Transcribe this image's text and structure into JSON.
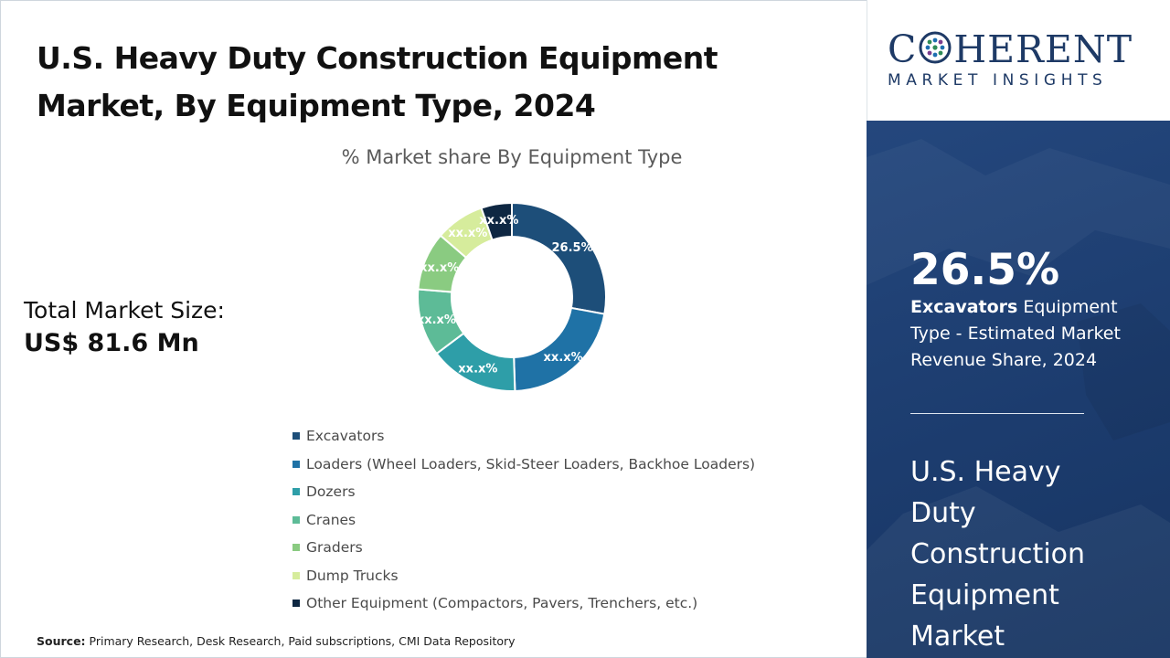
{
  "title": {
    "line1": "U.S. Heavy Duty Construction Equipment",
    "line2": "Market, By Equipment Type, 2024"
  },
  "market_size": {
    "label": "Total Market Size:",
    "value": "US$ 81.6 Mn"
  },
  "source": {
    "label": "Source:",
    "text": " Primary Research, Desk Research, Paid subscriptions, CMI Data Repository"
  },
  "logo": {
    "main_pre": "C",
    "main_post": "HERENT",
    "sub": "MARKET INSIGHTS"
  },
  "sidebar": {
    "stat_value": "26.5%",
    "stat_bold": "Excavators",
    "stat_rest": " Equipment Type - Estimated Market Revenue Share, 2024",
    "title_lines": [
      "U.S. Heavy",
      "Duty",
      "Construction",
      "Equipment",
      "Market"
    ]
  },
  "chart_data": {
    "type": "pie",
    "donut": true,
    "title": "% Market share By Equipment Type",
    "legend_position": "bottom",
    "series": [
      {
        "name": "Excavators",
        "value": 26.5,
        "label": "26.5%",
        "color": "#1d4e79"
      },
      {
        "name": "Loaders (Wheel Loaders, Skid-Steer Loaders, Backhoe Loaders)",
        "value": 20.5,
        "label": "xx.x%",
        "color": "#1f72a6"
      },
      {
        "name": "Dozers",
        "value": 14.5,
        "label": "xx.x%",
        "color": "#2e9ea8"
      },
      {
        "name": "Cranes",
        "value": 11.0,
        "label": "xx.x%",
        "color": "#5dbb97"
      },
      {
        "name": "Graders",
        "value": 9.5,
        "label": "xx.x%",
        "color": "#8acb81"
      },
      {
        "name": "Dump Trucks",
        "value": 8.0,
        "label": "xx.x%",
        "color": "#d6ec9c"
      },
      {
        "name": "Other Equipment (Compactors, Pavers, Trenchers, etc.)",
        "value": 5.0,
        "label": "xx.x%",
        "color": "#0e2742"
      }
    ]
  }
}
